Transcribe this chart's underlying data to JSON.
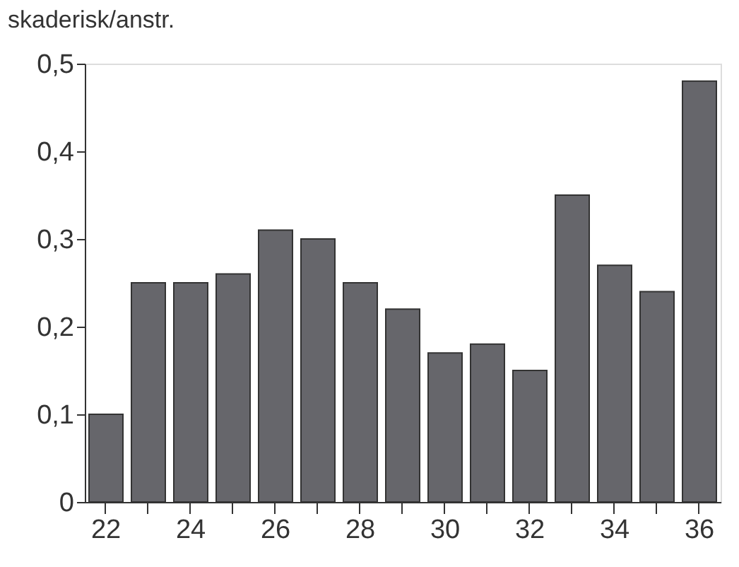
{
  "chart_data": {
    "type": "bar",
    "ylabel": "skaderisk/anstr.",
    "categories": [
      "22",
      null,
      "24",
      null,
      "26",
      null,
      "28",
      null,
      "30",
      null,
      "32",
      null,
      "34",
      null,
      "36"
    ],
    "values": [
      0.1,
      0.25,
      0.25,
      0.26,
      0.31,
      0.3,
      0.25,
      0.22,
      0.17,
      0.18,
      0.15,
      0.35,
      0.27,
      0.24,
      0.48
    ],
    "color": "#66666b",
    "ylim": [
      0,
      0.5
    ],
    "yticks": [
      {
        "value": 0,
        "label": "0"
      },
      {
        "value": 0.1,
        "label": "0,1"
      },
      {
        "value": 0.2,
        "label": "0,2"
      },
      {
        "value": 0.3,
        "label": "0,3"
      },
      {
        "value": 0.4,
        "label": "0,4"
      },
      {
        "value": 0.5,
        "label": "0,5"
      }
    ],
    "grid": false
  }
}
